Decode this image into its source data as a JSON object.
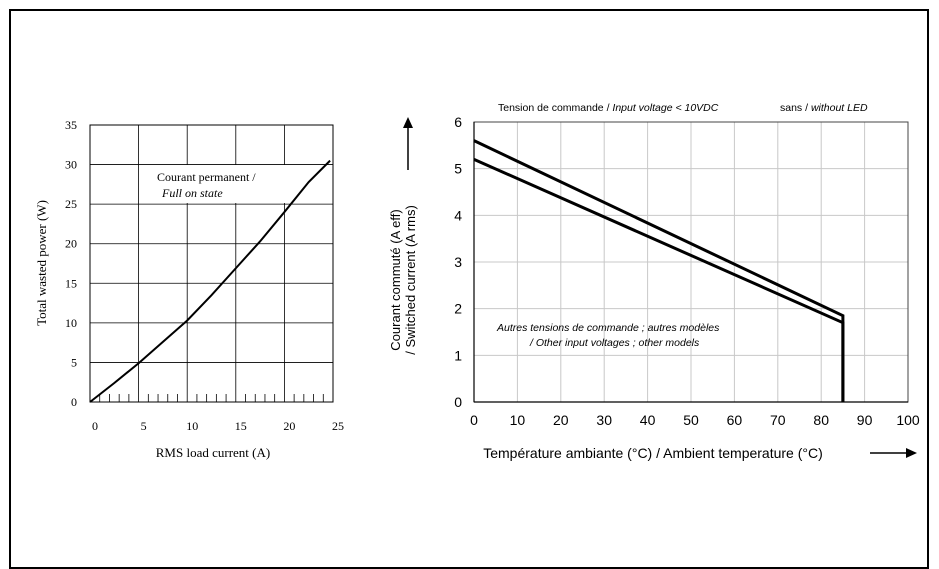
{
  "chart_data": [
    {
      "type": "line",
      "title": "",
      "xlabel": "RMS load current (A)",
      "ylabel": "Total wasted power (W)",
      "xlim": [
        0,
        25
      ],
      "ylim": [
        0,
        35
      ],
      "x_ticks": [
        "0",
        "5",
        "10",
        "15",
        "20",
        "25"
      ],
      "y_ticks": [
        "0",
        "5",
        "10",
        "15",
        "20",
        "25",
        "30",
        "35"
      ],
      "grid": true,
      "annotation_line1": "Courant permanent /",
      "annotation_line2": "Full on state",
      "series": [
        {
          "x": [
            0,
            2.5,
            5,
            7.5,
            10,
            12.5,
            15,
            17.5,
            20,
            22.5,
            24.7
          ],
          "y": [
            0,
            2.4,
            4.9,
            7.6,
            10.3,
            13.5,
            16.9,
            20.3,
            24.0,
            27.8,
            30.5
          ]
        }
      ]
    },
    {
      "type": "line",
      "title_part1": "Tension de commande / ",
      "title_part2": "Input voltage < 10VDC",
      "title_part3": "sans / ",
      "title_part4": "without LED",
      "xlabel": "Température ambiante (°C) / Ambient temperature (°C)",
      "ylabel_line1": "Courant commuté (A eff)",
      "ylabel_line2": "/ Switched current (A rms)",
      "xlim": [
        0,
        100
      ],
      "ylim": [
        0,
        6
      ],
      "x_ticks": [
        "0",
        "10",
        "20",
        "30",
        "40",
        "50",
        "60",
        "70",
        "80",
        "90",
        "100"
      ],
      "y_ticks": [
        "0",
        "1",
        "2",
        "3",
        "4",
        "5",
        "6"
      ],
      "grid": true,
      "annotation_line1": "Autres tensions de commande ; autres modèles",
      "annotation_line2": "/ Other input voltages ; other models",
      "series": [
        {
          "x": [
            0,
            85,
            85
          ],
          "y": [
            5.6,
            1.85,
            0
          ]
        },
        {
          "x": [
            0,
            85,
            85
          ],
          "y": [
            5.2,
            1.7,
            0
          ]
        }
      ]
    }
  ]
}
